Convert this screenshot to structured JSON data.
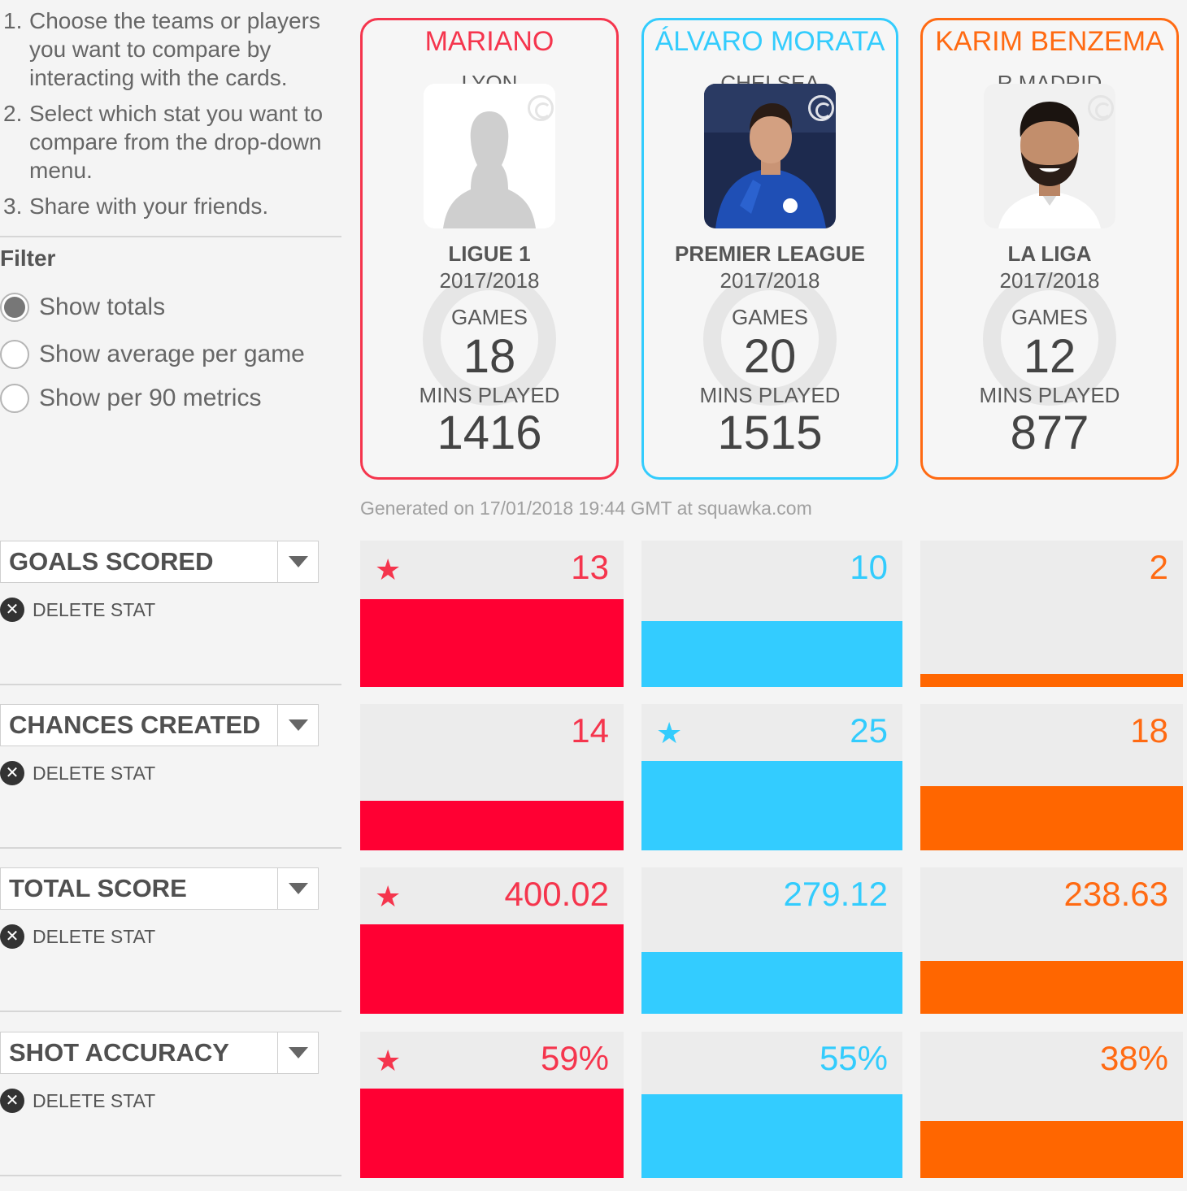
{
  "instructions": [
    {
      "num": "1.",
      "text": "Choose the teams or players you want to compare by interacting with the cards."
    },
    {
      "num": "2.",
      "text": "Select which stat you want to compare from the drop-down menu."
    },
    {
      "num": "3.",
      "text": "Share with your friends."
    }
  ],
  "filter": {
    "title": "Filter",
    "options": [
      {
        "label": "Show totals",
        "selected": true
      },
      {
        "label": "Show average per game",
        "selected": false
      },
      {
        "label": "Show per 90 metrics",
        "selected": false
      }
    ]
  },
  "cards": [
    {
      "name": "MARIANO",
      "team": "LYON",
      "league": "LIGUE 1",
      "season": "2017/2018",
      "games_label": "GAMES",
      "games": "18",
      "mins_label": "MINS PLAYED",
      "mins": "1416",
      "color": "#f5354d",
      "photo": "silhouette-placeholder"
    },
    {
      "name": "ÁLVARO MORATA",
      "team": "CHELSEA",
      "league": "PREMIER LEAGUE",
      "season": "2017/2018",
      "games_label": "GAMES",
      "games": "20",
      "mins_label": "MINS PLAYED",
      "mins": "1515",
      "color": "#33ccfd",
      "photo": "player-in-blue-kit"
    },
    {
      "name": "KARIM BENZEMA",
      "team": "R MADRID",
      "league": "LA LIGA",
      "season": "2017/2018",
      "games_label": "GAMES",
      "games": "12",
      "mins_label": "MINS PLAYED",
      "mins": "877",
      "color": "#ff6a12",
      "photo": "player-bearded-smiling"
    }
  ],
  "generated": "Generated on 17/01/2018 19:44 GMT at squawka.com",
  "delete_label": "DELETE STAT",
  "bar_colors": [
    "#ff0033",
    "#33ccff",
    "#ff6600"
  ],
  "stats": [
    {
      "name": "GOALS SCORED",
      "values": [
        "13",
        "10",
        "2"
      ],
      "fill": [
        0.6,
        0.45,
        0.09
      ],
      "best": 0
    },
    {
      "name": "CHANCES CREATED",
      "values": [
        "14",
        "25",
        "18"
      ],
      "fill": [
        0.34,
        0.61,
        0.44
      ],
      "best": 1
    },
    {
      "name": "TOTAL SCORE",
      "values": [
        "400.02",
        "279.12",
        "238.63"
      ],
      "fill": [
        0.61,
        0.42,
        0.36
      ],
      "best": 0
    },
    {
      "name": "SHOT ACCURACY",
      "values": [
        "59%",
        "55%",
        "38%"
      ],
      "fill": [
        0.61,
        0.57,
        0.39
      ],
      "best": 0
    }
  ]
}
